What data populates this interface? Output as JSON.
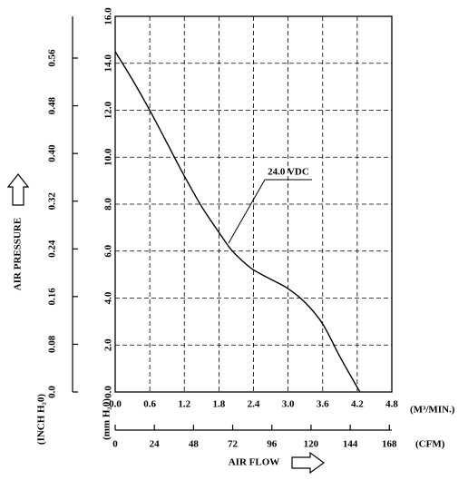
{
  "chart_data": {
    "type": "line",
    "xlabel": "AIR FLOW",
    "ylabel": "AIR PRESSURE",
    "x_unit": "(M³/MIN.)",
    "x2_unit": "(CFM)",
    "y_unit": "(mm H₂0)",
    "y2_unit": "(INCH H₂0)",
    "x": [
      0,
      0.3,
      0.6,
      0.9,
      1.2,
      1.5,
      1.8,
      2.0,
      2.2,
      2.4,
      2.7,
      3.0,
      3.3,
      3.6,
      3.9,
      4.2,
      4.25
    ],
    "series": [
      {
        "name": "24.0 VDC",
        "color": "#000000",
        "values": [
          14.5,
          13.3,
          12.0,
          10.6,
          9.2,
          7.9,
          6.8,
          6.1,
          5.6,
          5.2,
          4.8,
          4.4,
          3.8,
          2.9,
          1.5,
          0.2,
          0
        ]
      }
    ],
    "xlim": [
      0,
      4.8
    ],
    "xticks": [
      {
        "value": 0,
        "label": "0.0"
      },
      0.6,
      1.2,
      1.8,
      2.4,
      {
        "value": 3,
        "label": "3.0"
      },
      3.6,
      4.2,
      4.8
    ],
    "x2lim": [
      0,
      169.5
    ],
    "x2ticks": [
      0,
      24,
      48,
      72,
      96,
      120,
      144,
      168
    ],
    "ylim": [
      0,
      16
    ],
    "yticks": [
      {
        "value": 0,
        "label": "0.0"
      },
      {
        "value": 2,
        "label": "2.0"
      },
      {
        "value": 4,
        "label": "4.0"
      },
      {
        "value": 6,
        "label": "6.0"
      },
      {
        "value": 8,
        "label": "8.0"
      },
      {
        "value": 10,
        "label": "10.0"
      },
      {
        "value": 12,
        "label": "12.0"
      },
      {
        "value": 14,
        "label": "14.0"
      },
      {
        "value": 16,
        "label": "16.0"
      }
    ],
    "y2lim": [
      0,
      0.63
    ],
    "y2ticks": [
      {
        "value": 0,
        "label": "0.0"
      },
      0.08,
      0.16,
      0.24,
      0.32,
      {
        "value": 0.4,
        "label": "0.40"
      },
      0.48,
      0.56
    ],
    "grid": true
  }
}
